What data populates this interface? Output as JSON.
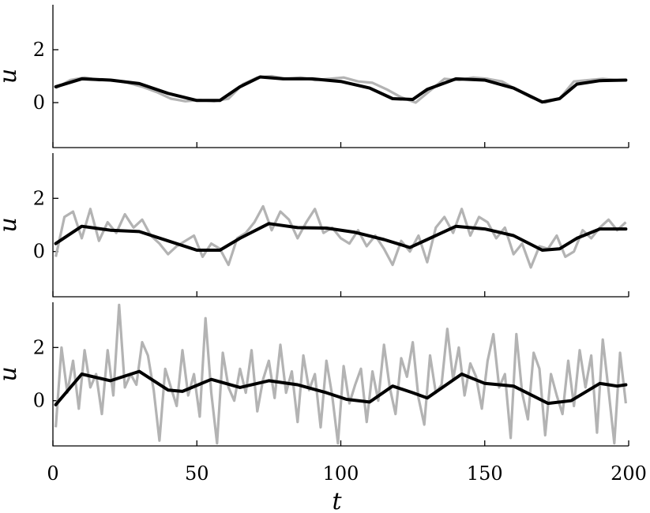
{
  "chart_data": [
    {
      "type": "line",
      "xlabel": "",
      "ylabel": "u",
      "xlim": [
        0,
        200
      ],
      "ylim": [
        -1.7,
        3.7
      ],
      "yticks": [
        0,
        2
      ],
      "xticks": [
        0,
        50,
        100,
        150,
        200
      ],
      "show_xtick_labels": false,
      "grid": false,
      "colors": {
        "noisy": "#b3b3b3",
        "smooth": "#000000"
      },
      "series": [
        {
          "x": [
            1,
            6,
            11,
            16,
            21,
            26,
            31,
            36,
            41,
            46,
            51,
            56,
            61,
            66,
            71,
            76,
            81,
            86,
            91,
            96,
            101,
            106,
            111,
            116,
            121,
            126,
            131,
            136,
            141,
            146,
            151,
            156,
            161,
            166,
            171,
            176,
            181,
            186,
            191,
            196,
            199
          ],
          "values": [
            0.55,
            0.85,
            0.95,
            0.85,
            0.85,
            0.75,
            0.6,
            0.4,
            0.15,
            0.05,
            0.1,
            0.05,
            0.15,
            0.7,
            0.95,
            1.0,
            0.9,
            0.95,
            0.85,
            0.9,
            0.95,
            0.8,
            0.75,
            0.5,
            0.2,
            0.0,
            0.45,
            0.9,
            0.85,
            0.95,
            0.9,
            0.8,
            0.5,
            0.2,
            0.0,
            0.15,
            0.8,
            0.85,
            0.9,
            0.85,
            0.85
          ]
        },
        {
          "x": [
            1,
            10,
            20,
            30,
            40,
            50,
            58,
            65,
            72,
            80,
            90,
            100,
            110,
            118,
            125,
            130,
            140,
            150,
            160,
            170,
            176,
            182,
            190,
            199
          ],
          "values": [
            0.6,
            0.9,
            0.85,
            0.72,
            0.35,
            0.08,
            0.08,
            0.6,
            0.97,
            0.9,
            0.9,
            0.8,
            0.55,
            0.15,
            0.12,
            0.5,
            0.9,
            0.85,
            0.55,
            0.02,
            0.15,
            0.7,
            0.83,
            0.85
          ]
        }
      ]
    },
    {
      "type": "line",
      "xlabel": "",
      "ylabel": "u",
      "xlim": [
        0,
        200
      ],
      "ylim": [
        -1.7,
        3.7
      ],
      "yticks": [
        0,
        2
      ],
      "xticks": [
        0,
        50,
        100,
        150,
        200
      ],
      "show_xtick_labels": false,
      "grid": false,
      "series": [
        {
          "x": [
            1,
            4,
            7,
            10,
            13,
            16,
            19,
            22,
            25,
            28,
            31,
            34,
            37,
            40,
            43,
            46,
            49,
            52,
            55,
            58,
            61,
            64,
            67,
            70,
            73,
            76,
            79,
            82,
            85,
            88,
            91,
            94,
            97,
            100,
            103,
            106,
            109,
            112,
            115,
            118,
            121,
            124,
            127,
            130,
            133,
            136,
            139,
            142,
            145,
            148,
            151,
            154,
            157,
            160,
            163,
            166,
            169,
            172,
            175,
            178,
            181,
            184,
            187,
            190,
            193,
            196,
            199
          ],
          "values": [
            -0.2,
            1.3,
            1.5,
            0.5,
            1.6,
            0.4,
            1.1,
            0.7,
            1.4,
            0.9,
            1.2,
            0.6,
            0.3,
            -0.1,
            0.2,
            0.4,
            0.6,
            -0.2,
            0.3,
            0.1,
            -0.5,
            0.5,
            0.7,
            1.1,
            1.7,
            0.8,
            1.5,
            1.2,
            0.5,
            1.1,
            1.6,
            0.7,
            0.9,
            0.5,
            0.3,
            0.8,
            0.2,
            0.6,
            0.1,
            -0.5,
            0.4,
            0.0,
            0.6,
            -0.4,
            0.9,
            1.3,
            0.7,
            1.6,
            0.6,
            1.3,
            1.1,
            0.5,
            0.9,
            -0.1,
            0.3,
            -0.6,
            0.2,
            0.1,
            0.6,
            -0.2,
            0.0,
            0.8,
            0.5,
            0.9,
            1.2,
            0.8,
            1.1
          ]
        },
        {
          "x": [
            1,
            10,
            20,
            30,
            40,
            50,
            58,
            65,
            75,
            85,
            95,
            105,
            115,
            124,
            130,
            140,
            150,
            160,
            170,
            176,
            182,
            190,
            199
          ],
          "values": [
            0.3,
            0.95,
            0.8,
            0.75,
            0.4,
            0.05,
            0.05,
            0.5,
            1.05,
            0.9,
            0.88,
            0.72,
            0.45,
            0.15,
            0.45,
            0.95,
            0.85,
            0.6,
            0.05,
            0.1,
            0.5,
            0.85,
            0.85
          ]
        }
      ]
    },
    {
      "type": "line",
      "xlabel": "t",
      "ylabel": "u",
      "xlim": [
        0,
        200
      ],
      "ylim": [
        -1.7,
        3.7
      ],
      "yticks": [
        0,
        2
      ],
      "xticks": [
        0,
        50,
        100,
        150,
        200
      ],
      "show_xtick_labels": true,
      "grid": false,
      "series": [
        {
          "x": [
            1,
            3,
            5,
            7,
            9,
            11,
            13,
            15,
            17,
            19,
            21,
            23,
            25,
            27,
            29,
            31,
            33,
            35,
            37,
            39,
            41,
            43,
            45,
            47,
            49,
            51,
            53,
            55,
            57,
            59,
            61,
            63,
            65,
            67,
            69,
            71,
            73,
            75,
            77,
            79,
            81,
            83,
            85,
            87,
            89,
            91,
            93,
            95,
            97,
            99,
            101,
            103,
            105,
            107,
            109,
            111,
            113,
            115,
            117,
            119,
            121,
            123,
            125,
            127,
            129,
            131,
            133,
            135,
            137,
            139,
            141,
            143,
            145,
            147,
            149,
            151,
            153,
            155,
            157,
            159,
            161,
            163,
            165,
            167,
            169,
            171,
            173,
            175,
            177,
            179,
            181,
            183,
            185,
            187,
            189,
            191,
            193,
            195,
            197,
            199
          ],
          "values": [
            -1.0,
            2.0,
            0.3,
            1.5,
            -0.3,
            1.9,
            0.5,
            1.0,
            -0.5,
            1.9,
            0.2,
            3.6,
            0.5,
            1.0,
            0.6,
            2.2,
            1.7,
            0.4,
            -1.5,
            1.2,
            0.5,
            -0.2,
            1.9,
            0.2,
            1.0,
            -0.6,
            3.1,
            0.3,
            -1.6,
            1.8,
            0.5,
            0.0,
            1.2,
            0.3,
            1.9,
            -0.4,
            0.8,
            1.5,
            0.1,
            2.1,
            0.3,
            1.1,
            -0.8,
            1.7,
            0.4,
            1.0,
            -1.0,
            1.5,
            0.2,
            -1.6,
            1.3,
            -0.1,
            0.6,
            1.2,
            -0.8,
            1.1,
            0.0,
            2.1,
            0.5,
            -0.5,
            1.6,
            0.9,
            2.2,
            0.1,
            -0.9,
            1.7,
            0.3,
            0.6,
            2.7,
            0.8,
            2.0,
            0.2,
            1.4,
            0.9,
            -0.3,
            1.5,
            2.5,
            0.5,
            1.0,
            -1.4,
            2.5,
            0.3,
            -0.7,
            1.8,
            1.2,
            -1.3,
            1.0,
            0.2,
            -0.5,
            1.5,
            -0.2,
            1.9,
            0.5,
            1.7,
            -1.2,
            2.3,
            0.4,
            -1.6,
            1.8,
            -0.1
          ]
        },
        {
          "x": [
            1,
            10,
            20,
            30,
            40,
            45,
            55,
            65,
            75,
            85,
            95,
            102,
            110,
            118,
            125,
            130,
            142,
            150,
            160,
            172,
            180,
            190,
            196,
            199
          ],
          "values": [
            -0.15,
            1.0,
            0.75,
            1.1,
            0.4,
            0.35,
            0.8,
            0.5,
            0.75,
            0.6,
            0.3,
            0.05,
            -0.05,
            0.55,
            0.3,
            0.1,
            1.0,
            0.65,
            0.55,
            -0.1,
            0.0,
            0.65,
            0.55,
            0.6
          ]
        }
      ]
    }
  ]
}
